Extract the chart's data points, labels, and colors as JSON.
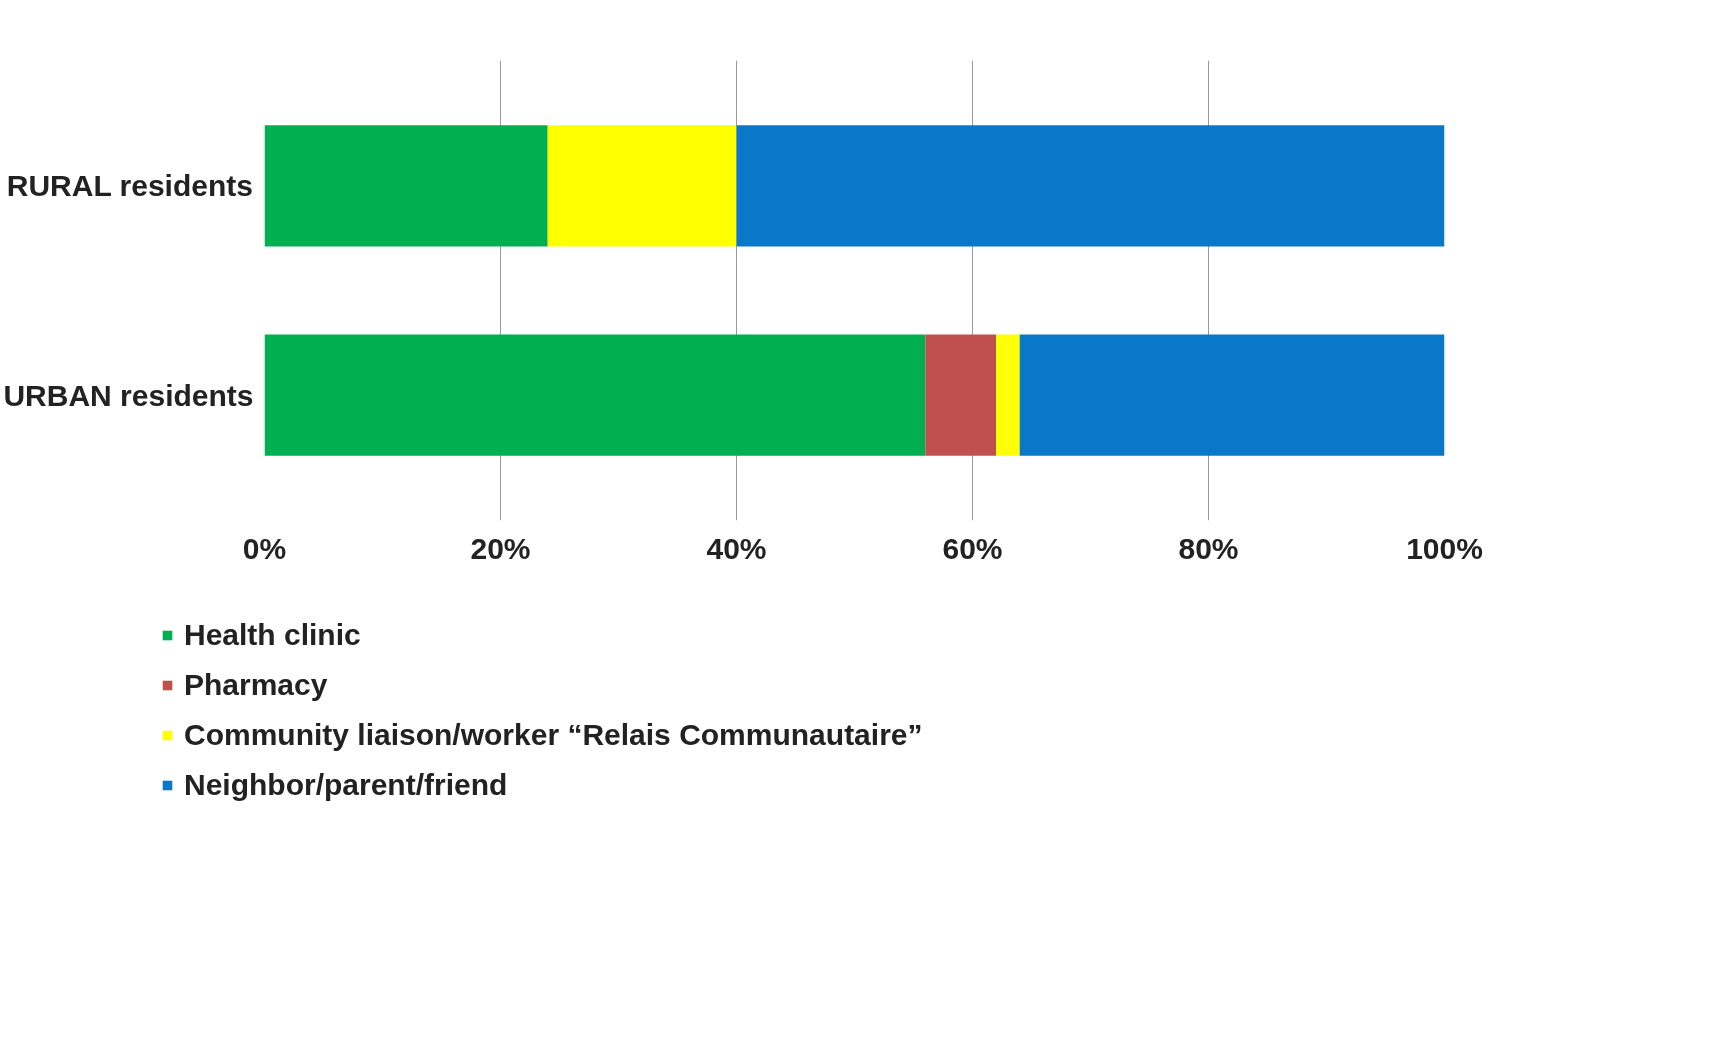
{
  "chart_data": {
    "type": "bar",
    "orientation": "horizontal",
    "stacked": true,
    "categories": [
      "RURAL residents",
      "URBAN residents"
    ],
    "series": [
      {
        "name": "Health clinic",
        "color": "#00b050",
        "values": [
          24,
          56
        ]
      },
      {
        "name": "Pharmacy",
        "color": "#c0504d",
        "values": [
          0,
          6
        ]
      },
      {
        "name": "Community liaison/worker “Relais Communautaire”",
        "color": "#ffff00",
        "values": [
          16,
          2
        ]
      },
      {
        "name": "Neighbor/parent/friend",
        "color": "#0a78c8",
        "values": [
          60,
          36
        ]
      }
    ],
    "xlim": [
      0,
      100
    ],
    "xticks": [
      {
        "value": 0,
        "label": "0%"
      },
      {
        "value": 20,
        "label": "20%"
      },
      {
        "value": 40,
        "label": "40%"
      },
      {
        "value": 60,
        "label": "60%"
      },
      {
        "value": 80,
        "label": "80%"
      },
      {
        "value": 100,
        "label": "100%"
      }
    ],
    "grid": "x",
    "legend": "bottom"
  }
}
